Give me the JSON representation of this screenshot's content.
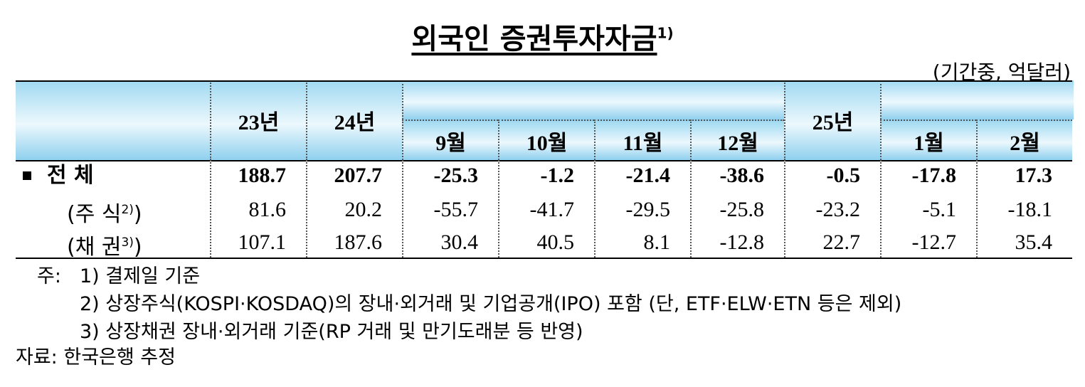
{
  "header": {
    "title": "외국인 증권투자자금",
    "title_note": "1)",
    "unit": "(기간중, 억달러)"
  },
  "table": {
    "columns": [
      "23년",
      "24년",
      "9월",
      "10월",
      "11월",
      "12월",
      "25년",
      "1월",
      "2월"
    ],
    "rows": [
      {
        "label": [
          "전  체"
        ],
        "values": [
          "188.7",
          "207.7",
          "-25.3",
          "-1.2",
          "-21.4",
          "-38.6",
          "-0.5",
          "-17.8",
          "17.3"
        ]
      },
      {
        "label": [
          "(주 식",
          "2)",
          ")"
        ],
        "values": [
          "81.6",
          "20.2",
          "-55.7",
          "-41.7",
          "-29.5",
          "-25.8",
          "-23.2",
          "-5.1",
          "-18.1"
        ]
      },
      {
        "label": [
          "(채  권",
          "3)",
          ")"
        ],
        "values": [
          "107.1",
          "187.6",
          "30.4",
          "40.5",
          "8.1",
          "-12.8",
          "22.7",
          "-12.7",
          "35.4"
        ]
      }
    ]
  },
  "notes": {
    "prefix": "주:",
    "items": [
      "1)  결제일 기준",
      "2)  상장주식(KOSPI·KOSDAQ)의 장내·외거래 및 기업공개(IPO) 포함 (단, ETF·ELW·ETN 등은 제외)",
      "3)  상장채권 장내·외거래 기준(RP 거래 및 만기도래분 등 반영)"
    ]
  },
  "source": "자료: 한국은행 추정"
}
